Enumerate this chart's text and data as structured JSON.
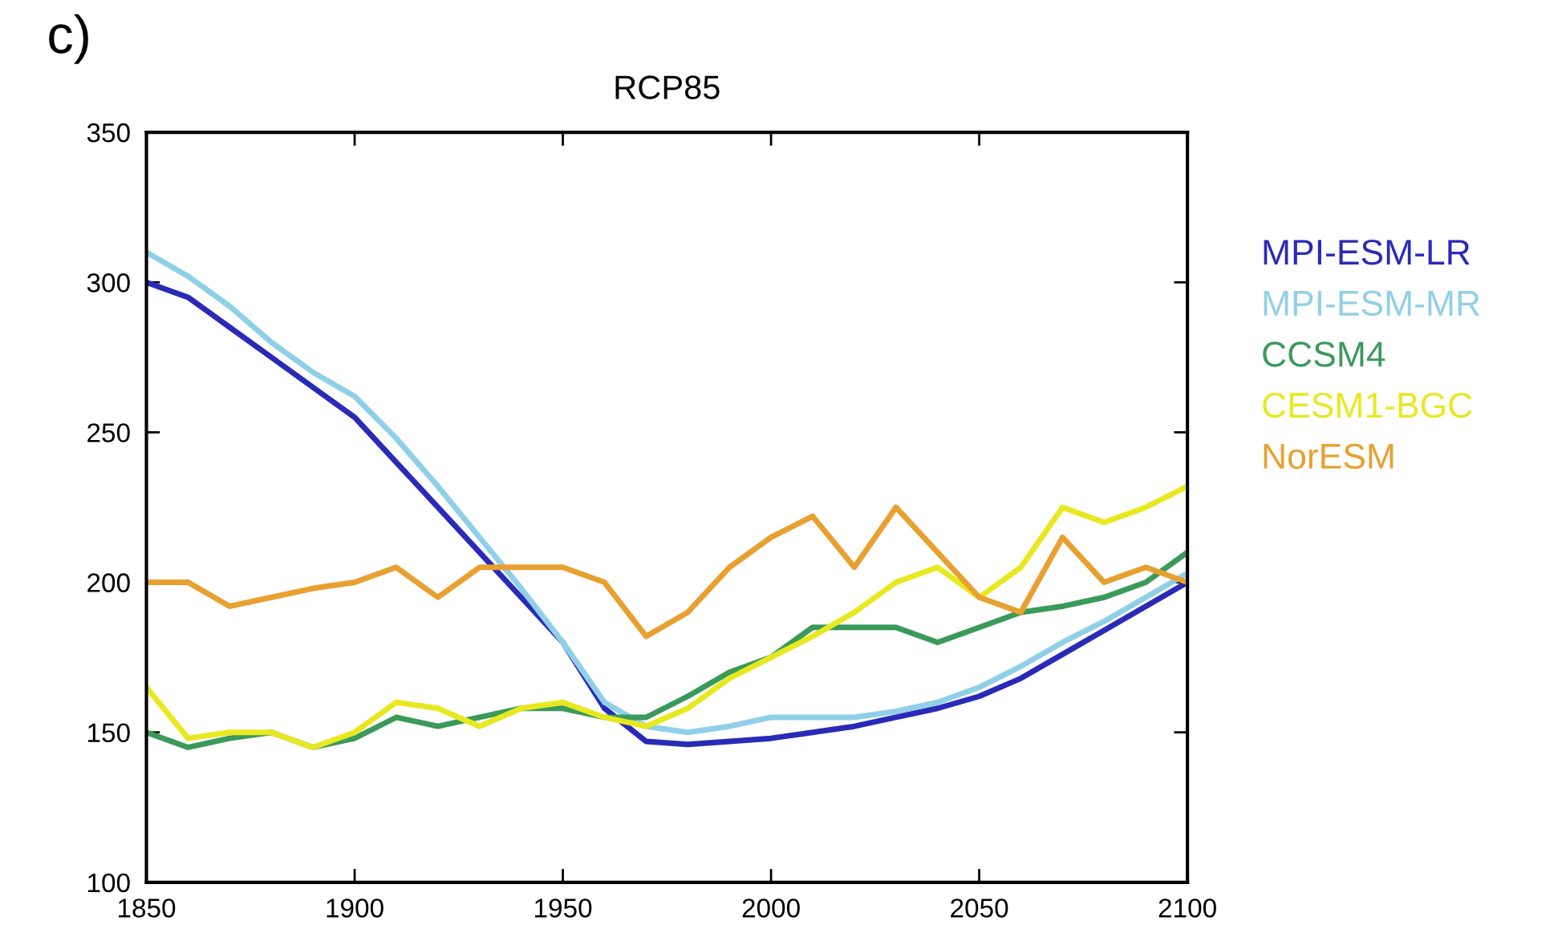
{
  "chart_data": {
    "type": "line",
    "title": "RCP85",
    "annotations": [
      "c)"
    ],
    "x": [
      1850,
      1860,
      1870,
      1880,
      1890,
      1900,
      1910,
      1920,
      1930,
      1940,
      1950,
      1960,
      1970,
      1980,
      1990,
      2000,
      2010,
      2020,
      2030,
      2040,
      2050,
      2060,
      2070,
      2080,
      2090,
      2100
    ],
    "series": [
      {
        "name": "MPI-ESM-LR",
        "color": "#2a2ab8",
        "values": [
          300,
          295,
          285,
          275,
          265,
          255,
          240,
          225,
          210,
          195,
          180,
          158,
          147,
          146,
          147,
          148,
          150,
          152,
          155,
          158,
          162,
          168,
          176,
          184,
          192,
          200
        ]
      },
      {
        "name": "MPI-ESM-MR",
        "color": "#8fd0e8",
        "values": [
          310,
          302,
          292,
          280,
          270,
          262,
          248,
          232,
          215,
          198,
          180,
          160,
          152,
          150,
          152,
          155,
          155,
          155,
          157,
          160,
          165,
          172,
          180,
          187,
          195,
          203
        ]
      },
      {
        "name": "CCSM4",
        "color": "#3a9a5a",
        "values": [
          150,
          145,
          148,
          150,
          145,
          148,
          155,
          152,
          155,
          158,
          158,
          155,
          155,
          162,
          170,
          175,
          185,
          185,
          185,
          180,
          185,
          190,
          192,
          195,
          200,
          210
        ]
      },
      {
        "name": "CESM1-BGC",
        "color": "#e8e820",
        "values": [
          165,
          148,
          150,
          150,
          145,
          150,
          160,
          158,
          152,
          158,
          160,
          155,
          152,
          158,
          168,
          175,
          182,
          190,
          200,
          205,
          195,
          205,
          225,
          220,
          225,
          232
        ]
      },
      {
        "name": "NorESM",
        "color": "#e8a030",
        "values": [
          200,
          200,
          192,
          195,
          198,
          200,
          205,
          195,
          205,
          205,
          205,
          200,
          182,
          190,
          205,
          215,
          222,
          205,
          225,
          210,
          195,
          190,
          215,
          200,
          205,
          200
        ]
      }
    ],
    "xlim": [
      1850,
      2100
    ],
    "ylim": [
      100,
      350
    ],
    "xticks": [
      1850,
      1900,
      1950,
      2000,
      2050,
      2100
    ],
    "yticks": [
      100,
      150,
      200,
      250,
      300,
      350
    ],
    "grid": false,
    "legend": "right",
    "marker": "none",
    "line_style": "solid"
  }
}
